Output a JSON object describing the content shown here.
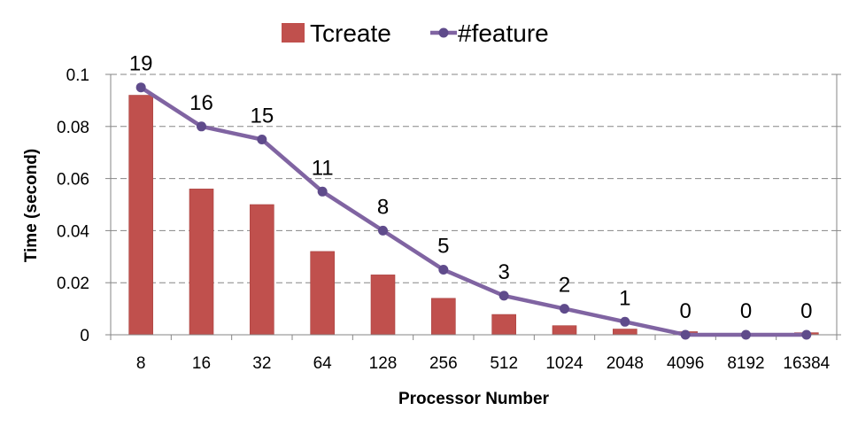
{
  "chart_data": {
    "type": "bar+line",
    "xlabel": "Processor Number",
    "ylabel": "Time (second)",
    "ylim": [
      0,
      0.1
    ],
    "yticks": [
      "0",
      "0.02",
      "0.04",
      "0.06",
      "0.08",
      "0.1"
    ],
    "y2lim": [
      0,
      20
    ],
    "grid": true,
    "legend_position": "top",
    "categories": [
      "8",
      "16",
      "32",
      "64",
      "128",
      "256",
      "512",
      "1024",
      "2048",
      "4096",
      "8192",
      "16384"
    ],
    "series": [
      {
        "name": "Tcreate",
        "type": "bar",
        "axis": "left",
        "color": "#c0504d",
        "values": [
          0.092,
          0.056,
          0.05,
          0.032,
          0.023,
          0.014,
          0.0078,
          0.0035,
          0.0022,
          0.0012,
          0.0005,
          0.0008
        ]
      },
      {
        "name": "#feature",
        "type": "line",
        "axis": "right",
        "color": "#8064a2",
        "marker_color": "#5f4b8b",
        "values": [
          19,
          16,
          15,
          11,
          8,
          5,
          3,
          2,
          1,
          0,
          0,
          0
        ],
        "labels": [
          "19",
          "16",
          "15",
          "11",
          "8",
          "5",
          "3",
          "2",
          "1",
          "0",
          "0",
          "0"
        ]
      }
    ]
  }
}
